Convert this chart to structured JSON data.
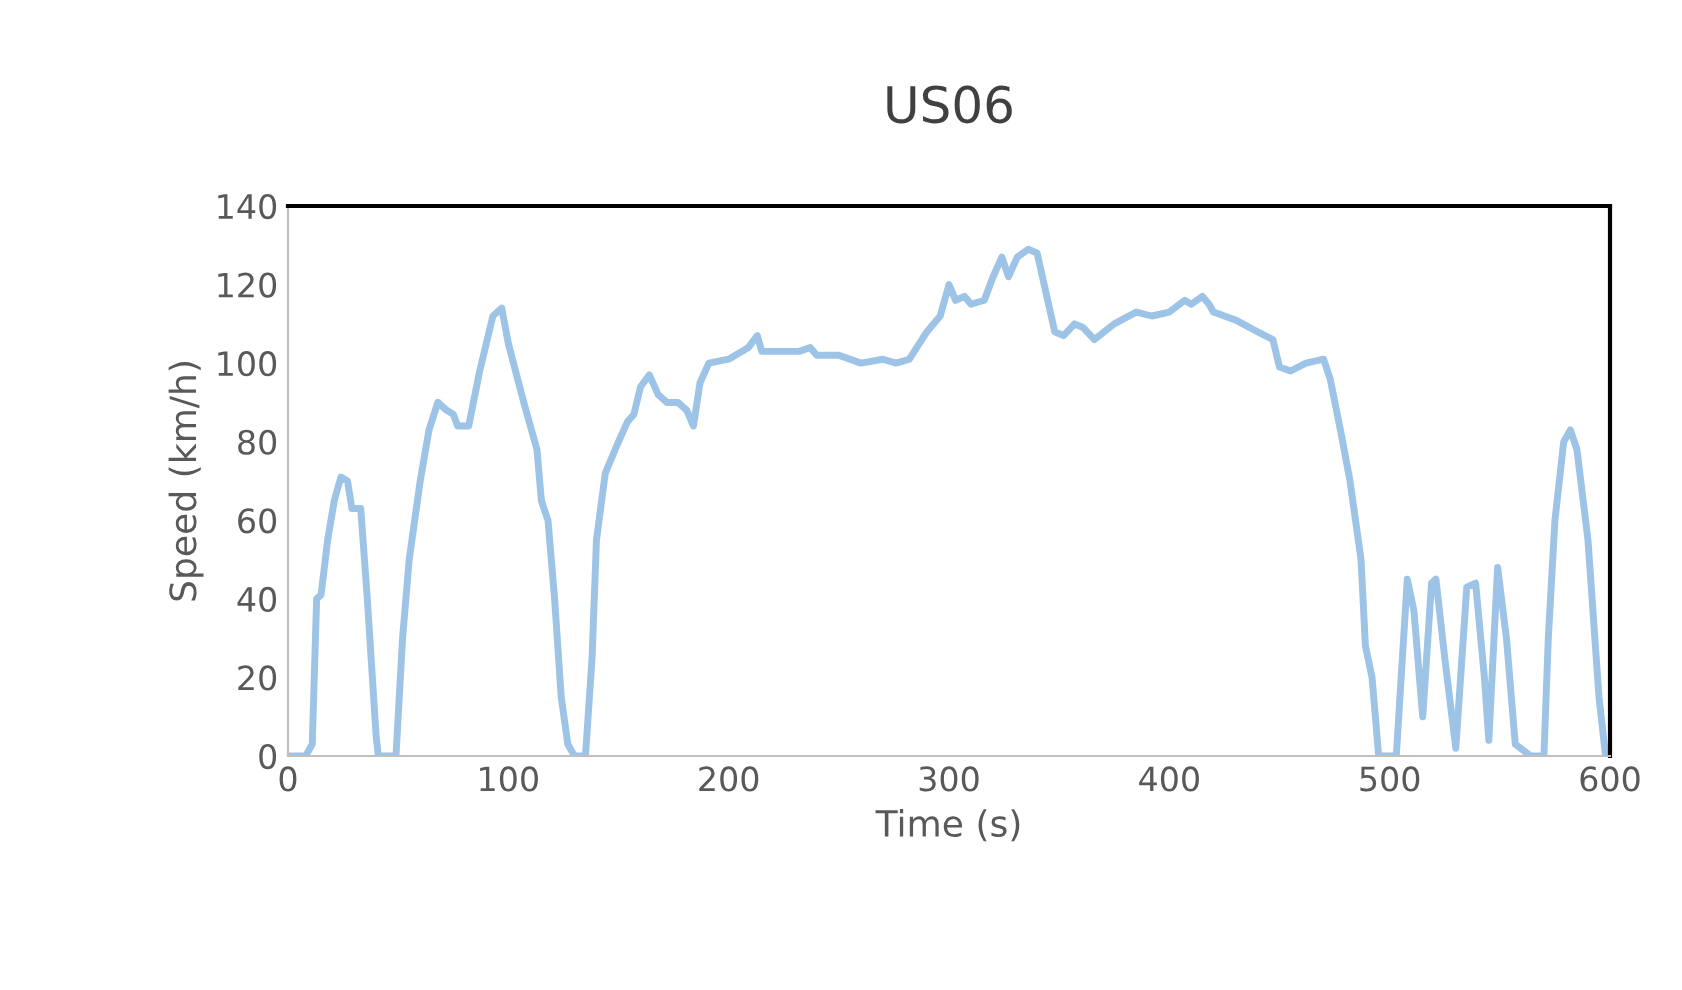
{
  "chart_data": {
    "type": "line",
    "title": "US06",
    "xlabel": "Time (s)",
    "ylabel": "Speed (km/h)",
    "xlim": [
      0,
      600
    ],
    "xticks": [
      0,
      100,
      200,
      300,
      400,
      500,
      600
    ],
    "ylim": [
      0,
      140
    ],
    "yticks": [
      0,
      20,
      40,
      60,
      80,
      100,
      120,
      140
    ],
    "grid": false,
    "legend": false,
    "marker": "none",
    "line_style": "solid",
    "series": [
      {
        "color": "#9dc3e6",
        "x": [
          0,
          8,
          11,
          13,
          15,
          18,
          21,
          24,
          27,
          29,
          33,
          36,
          40,
          41,
          49,
          52,
          55,
          60,
          64,
          68,
          72,
          75,
          77,
          82,
          87,
          93,
          97,
          100,
          107,
          113,
          115,
          118,
          121,
          124,
          127,
          130,
          135,
          138,
          140,
          144,
          150,
          154,
          157,
          160,
          164,
          168,
          172,
          177,
          181,
          184,
          187,
          191,
          200,
          209,
          213,
          215,
          225,
          232,
          237,
          240,
          250,
          260,
          270,
          276,
          282,
          290,
          296,
          300,
          303,
          307,
          310,
          316,
          320,
          324,
          327,
          331,
          336,
          340,
          344,
          348,
          352,
          357,
          361,
          366,
          375,
          385,
          392,
          400,
          407,
          410,
          415,
          418,
          420,
          430,
          440,
          447,
          450,
          455,
          462,
          470,
          473,
          478,
          482,
          487,
          489,
          492,
          495,
          503,
          508,
          511,
          515,
          519,
          521,
          525,
          530,
          535,
          539,
          543,
          545,
          549,
          553,
          557,
          564,
          570,
          572,
          575,
          579,
          582,
          585,
          590,
          595,
          598,
          600
        ],
        "values": [
          0,
          0,
          3,
          40,
          41,
          55,
          65,
          71,
          70,
          63,
          63,
          40,
          5,
          0,
          0,
          30,
          50,
          70,
          83,
          90,
          88,
          87,
          84,
          84,
          98,
          112,
          114,
          105,
          90,
          78,
          65,
          60,
          40,
          15,
          3,
          0,
          0,
          25,
          55,
          72,
          80,
          85,
          87,
          94,
          97,
          92,
          90,
          90,
          88,
          84,
          95,
          100,
          101,
          104,
          107,
          103,
          103,
          103,
          104,
          102,
          102,
          100,
          101,
          100,
          101,
          108,
          112,
          120,
          116,
          117,
          115,
          116,
          122,
          127,
          122,
          127,
          129,
          128,
          118,
          108,
          107,
          110,
          109,
          106,
          110,
          113,
          112,
          113,
          116,
          115,
          117,
          115,
          113,
          111,
          108,
          106,
          99,
          98,
          100,
          101,
          96,
          82,
          70,
          50,
          28,
          20,
          0,
          0,
          45,
          37,
          10,
          44,
          45,
          25,
          2,
          43,
          44,
          20,
          4,
          48,
          30,
          3,
          0,
          0,
          30,
          60,
          80,
          83,
          78,
          55,
          15,
          0,
          0
        ]
      }
    ]
  }
}
